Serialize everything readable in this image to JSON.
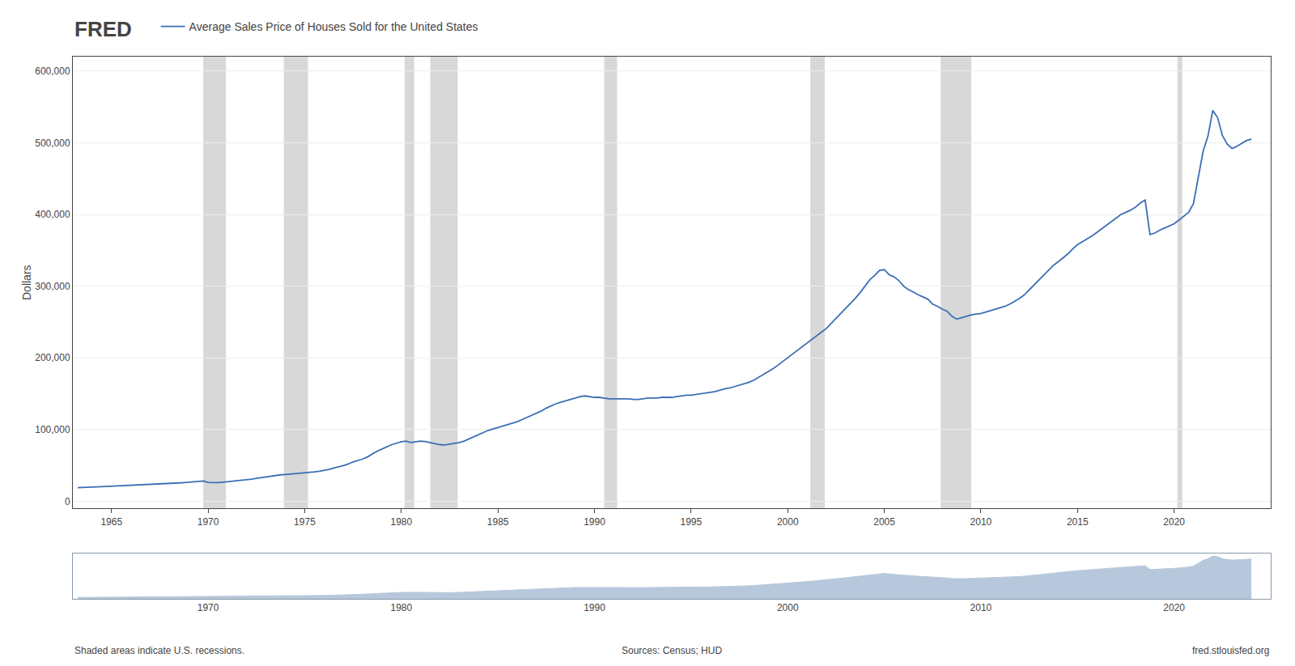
{
  "chart_data": [
    {
      "type": "line",
      "ylabel": "Dollars",
      "annotations": [
        "FRED",
        "Shaded areas indicate U.S. recessions.",
        "Sources: Census; HUD",
        "fred.stlouisfed.org"
      ],
      "legend": "top left",
      "grid": true,
      "xlim": [
        1963.0,
        2025.0
      ],
      "ylim": [
        -10000,
        620000
      ],
      "xticks": [
        1965,
        1970,
        1975,
        1980,
        1985,
        1990,
        1995,
        2000,
        2005,
        2010,
        2015,
        2020
      ],
      "yticks": [
        0,
        {
          "value": 100000,
          "label": "100,000"
        },
        {
          "value": 200000,
          "label": "200,000"
        },
        {
          "value": 300000,
          "label": "300,000"
        },
        {
          "value": 400000,
          "label": "400,000"
        },
        {
          "value": 500000,
          "label": "500,000"
        },
        {
          "value": 600000,
          "label": "600,000"
        }
      ],
      "recessions": {
        "color": "#d8d8d8",
        "ranges": [
          [
            1969.75,
            1970.92
          ],
          [
            1973.92,
            1975.17
          ],
          [
            1980.17,
            1980.67
          ],
          [
            1981.5,
            1982.92
          ],
          [
            1990.5,
            1991.17
          ],
          [
            2001.17,
            2001.92
          ],
          [
            2007.92,
            2009.5
          ],
          [
            2020.17,
            2020.42
          ]
        ]
      },
      "x": [
        1963.25,
        1963.5,
        1963.75,
        1964.0,
        1964.25,
        1964.5,
        1964.75,
        1965.0,
        1965.25,
        1965.5,
        1965.75,
        1966.0,
        1966.25,
        1966.5,
        1966.75,
        1967.0,
        1967.25,
        1967.5,
        1967.75,
        1968.0,
        1968.25,
        1968.5,
        1968.75,
        1969.0,
        1969.25,
        1969.5,
        1969.75,
        1970.0,
        1970.25,
        1970.5,
        1970.75,
        1971.0,
        1971.25,
        1971.5,
        1971.75,
        1972.0,
        1972.25,
        1972.5,
        1972.75,
        1973.0,
        1973.25,
        1973.5,
        1973.75,
        1974.0,
        1974.25,
        1974.5,
        1974.75,
        1975.0,
        1975.25,
        1975.5,
        1975.75,
        1976.0,
        1976.25,
        1976.5,
        1976.75,
        1977.0,
        1977.25,
        1977.5,
        1977.75,
        1978.0,
        1978.25,
        1978.5,
        1978.75,
        1979.0,
        1979.25,
        1979.5,
        1979.75,
        1980.0,
        1980.25,
        1980.5,
        1980.75,
        1981.0,
        1981.25,
        1981.5,
        1981.75,
        1982.0,
        1982.25,
        1982.5,
        1982.75,
        1983.0,
        1983.25,
        1983.5,
        1983.75,
        1984.0,
        1984.25,
        1984.5,
        1984.75,
        1985.0,
        1985.25,
        1985.5,
        1985.75,
        1986.0,
        1986.25,
        1986.5,
        1986.75,
        1987.0,
        1987.25,
        1987.5,
        1987.75,
        1988.0,
        1988.25,
        1988.5,
        1988.75,
        1989.0,
        1989.25,
        1989.5,
        1989.75,
        1990.0,
        1990.25,
        1990.5,
        1990.75,
        1991.0,
        1991.25,
        1991.5,
        1991.75,
        1992.0,
        1992.25,
        1992.5,
        1992.75,
        1993.0,
        1993.25,
        1993.5,
        1993.75,
        1994.0,
        1994.25,
        1994.5,
        1994.75,
        1995.0,
        1995.25,
        1995.5,
        1995.75,
        1996.0,
        1996.25,
        1996.5,
        1996.75,
        1997.0,
        1997.25,
        1997.5,
        1997.75,
        1998.0,
        1998.25,
        1998.5,
        1998.75,
        1999.0,
        1999.25,
        1999.5,
        1999.75,
        2000.0,
        2000.25,
        2000.5,
        2000.75,
        2001.0,
        2001.25,
        2001.5,
        2001.75,
        2002.0,
        2002.25,
        2002.5,
        2002.75,
        2003.0,
        2003.25,
        2003.5,
        2003.75,
        2004.0,
        2004.25,
        2004.5,
        2004.75,
        2005.0,
        2005.25,
        2005.5,
        2005.75,
        2006.0,
        2006.25,
        2006.5,
        2006.75,
        2007.0,
        2007.25,
        2007.5,
        2007.75,
        2008.0,
        2008.25,
        2008.5,
        2008.75,
        2009.0,
        2009.25,
        2009.5,
        2009.75,
        2010.0,
        2010.25,
        2010.5,
        2010.75,
        2011.0,
        2011.25,
        2011.5,
        2011.75,
        2012.0,
        2012.25,
        2012.5,
        2012.75,
        2013.0,
        2013.25,
        2013.5,
        2013.75,
        2014.0,
        2014.25,
        2014.5,
        2014.75,
        2015.0,
        2015.25,
        2015.5,
        2015.75,
        2016.0,
        2016.25,
        2016.5,
        2016.75,
        2017.0,
        2017.25,
        2017.5,
        2017.75,
        2018.0,
        2018.25,
        2018.5,
        2018.75,
        2019.0,
        2019.25,
        2019.5,
        2019.75,
        2020.0,
        2020.25,
        2020.5,
        2020.75,
        2021.0,
        2021.25,
        2021.5,
        2021.75,
        2022.0,
        2022.25,
        2022.5,
        2022.75,
        2023.0,
        2023.25,
        2023.5,
        2023.75,
        2024.0
      ],
      "series": [
        {
          "name": "Average Sales Price of Houses Sold for the United States",
          "color": "#3a6fb5",
          "values": [
            19000,
            19500,
            19800,
            20000,
            20300,
            20500,
            20800,
            21000,
            21200,
            21500,
            21700,
            22000,
            22300,
            22600,
            22900,
            23300,
            23700,
            24000,
            24400,
            24800,
            25200,
            25700,
            26200,
            26700,
            27200,
            27800,
            28400,
            26500,
            26000,
            26200,
            26800,
            27500,
            28000,
            28500,
            29000,
            30000,
            31000,
            32000,
            33000,
            34000,
            35500,
            36500,
            37000,
            37500,
            38000,
            38500,
            39000,
            39800,
            40200,
            41000,
            42000,
            43000,
            44500,
            46500,
            48000,
            49800,
            52000,
            55000,
            57000,
            59000,
            62000,
            66000,
            70000,
            73000,
            76000,
            79000,
            81000,
            83000,
            84000,
            82000,
            83000,
            84000,
            83500,
            82000,
            80000,
            79000,
            78500,
            79500,
            81000,
            82000,
            84000,
            87000,
            90000,
            93000,
            96000,
            99000,
            101000,
            103000,
            105000,
            107000,
            109000,
            111000,
            114000,
            117000,
            120000,
            123000,
            126000,
            130000,
            133000,
            136000,
            138000,
            140000,
            142000,
            144000,
            146000,
            147000,
            146000,
            145000,
            145000,
            144000,
            143000,
            143000,
            143000,
            143000,
            143000,
            142000,
            142000,
            143000,
            144000,
            144000,
            144000,
            145000,
            145000,
            145000,
            146000,
            147000,
            148000,
            148000,
            149000,
            150000,
            151000,
            152000,
            153000,
            155000,
            157000,
            158000,
            160000,
            162000,
            164000,
            166000,
            169000,
            173000,
            177000,
            181000,
            185000,
            190000,
            195000,
            200000,
            206000,
            210000,
            215000,
            220000,
            225000,
            230000,
            235000,
            241000,
            248000,
            255000,
            261000,
            268000,
            275000,
            283000,
            291000,
            300000,
            309000,
            315000,
            322000,
            323000,
            316000,
            313000,
            308000,
            300000,
            295000,
            292000,
            288000,
            285000,
            282000,
            275000,
            272000,
            268000,
            265000,
            258000,
            254000,
            256000,
            258000,
            260000,
            261000,
            262000,
            264000,
            266000,
            268000,
            270000,
            272000,
            275000,
            279000,
            283000,
            288000,
            295000,
            302000,
            309000,
            316000,
            322000,
            329000,
            334000,
            339000,
            345000,
            352000,
            358000,
            362000,
            366000,
            370000,
            375000,
            380000,
            385000,
            390000,
            395000,
            400000,
            403000,
            406000,
            410000,
            416000,
            420000,
            372000,
            374000,
            378000,
            381000,
            384000,
            387000,
            392000,
            397000,
            403000,
            415000,
            452000,
            488000,
            509000,
            545000,
            535000,
            510000,
            498000,
            492000,
            495000,
            499000,
            503000,
            505000
          ]
        }
      ]
    },
    {
      "type": "area",
      "grid": false,
      "tick_labels": "x",
      "color": "#b8c8dc",
      "xlim": [
        1963.0,
        2025.0
      ],
      "ylim": [
        0,
        572250
      ],
      "xticks": [
        1970,
        1980,
        1990,
        2000,
        2010,
        2020
      ],
      "x": [
        1963.25,
        1963.5,
        1963.75,
        1964.0,
        1964.25,
        1964.5,
        1964.75,
        1965.0,
        1965.25,
        1965.5,
        1965.75,
        1966.0,
        1966.25,
        1966.5,
        1966.75,
        1967.0,
        1967.25,
        1967.5,
        1967.75,
        1968.0,
        1968.25,
        1968.5,
        1968.75,
        1969.0,
        1969.25,
        1969.5,
        1969.75,
        1970.0,
        1970.25,
        1970.5,
        1970.75,
        1971.0,
        1971.25,
        1971.5,
        1971.75,
        1972.0,
        1972.25,
        1972.5,
        1972.75,
        1973.0,
        1973.25,
        1973.5,
        1973.75,
        1974.0,
        1974.25,
        1974.5,
        1974.75,
        1975.0,
        1975.25,
        1975.5,
        1975.75,
        1976.0,
        1976.25,
        1976.5,
        1976.75,
        1977.0,
        1977.25,
        1977.5,
        1977.75,
        1978.0,
        1978.25,
        1978.5,
        1978.75,
        1979.0,
        1979.25,
        1979.5,
        1979.75,
        1980.0,
        1980.25,
        1980.5,
        1980.75,
        1981.0,
        1981.25,
        1981.5,
        1981.75,
        1982.0,
        1982.25,
        1982.5,
        1982.75,
        1983.0,
        1983.25,
        1983.5,
        1983.75,
        1984.0,
        1984.25,
        1984.5,
        1984.75,
        1985.0,
        1985.25,
        1985.5,
        1985.75,
        1986.0,
        1986.25,
        1986.5,
        1986.75,
        1987.0,
        1987.25,
        1987.5,
        1987.75,
        1988.0,
        1988.25,
        1988.5,
        1988.75,
        1989.0,
        1989.25,
        1989.5,
        1989.75,
        1990.0,
        1990.25,
        1990.5,
        1990.75,
        1991.0,
        1991.25,
        1991.5,
        1991.75,
        1992.0,
        1992.25,
        1992.5,
        1992.75,
        1993.0,
        1993.25,
        1993.5,
        1993.75,
        1994.0,
        1994.25,
        1994.5,
        1994.75,
        1995.0,
        1995.25,
        1995.5,
        1995.75,
        1996.0,
        1996.25,
        1996.5,
        1996.75,
        1997.0,
        1997.25,
        1997.5,
        1997.75,
        1998.0,
        1998.25,
        1998.5,
        1998.75,
        1999.0,
        1999.25,
        1999.5,
        1999.75,
        2000.0,
        2000.25,
        2000.5,
        2000.75,
        2001.0,
        2001.25,
        2001.5,
        2001.75,
        2002.0,
        2002.25,
        2002.5,
        2002.75,
        2003.0,
        2003.25,
        2003.5,
        2003.75,
        2004.0,
        2004.25,
        2004.5,
        2004.75,
        2005.0,
        2005.25,
        2005.5,
        2005.75,
        2006.0,
        2006.25,
        2006.5,
        2006.75,
        2007.0,
        2007.25,
        2007.5,
        2007.75,
        2008.0,
        2008.25,
        2008.5,
        2008.75,
        2009.0,
        2009.25,
        2009.5,
        2009.75,
        2010.0,
        2010.25,
        2010.5,
        2010.75,
        2011.0,
        2011.25,
        2011.5,
        2011.75,
        2012.0,
        2012.25,
        2012.5,
        2012.75,
        2013.0,
        2013.25,
        2013.5,
        2013.75,
        2014.0,
        2014.25,
        2014.5,
        2014.75,
        2015.0,
        2015.25,
        2015.5,
        2015.75,
        2016.0,
        2016.25,
        2016.5,
        2016.75,
        2017.0,
        2017.25,
        2017.5,
        2017.75,
        2018.0,
        2018.25,
        2018.5,
        2018.75,
        2019.0,
        2019.25,
        2019.5,
        2019.75,
        2020.0,
        2020.25,
        2020.5,
        2020.75,
        2021.0,
        2021.25,
        2021.5,
        2021.75,
        2022.0,
        2022.25,
        2022.5,
        2022.75,
        2023.0,
        2023.25,
        2023.5,
        2023.75,
        2024.0
      ],
      "values": [
        19000,
        19500,
        19800,
        20000,
        20300,
        20500,
        20800,
        21000,
        21200,
        21500,
        21700,
        22000,
        22300,
        22600,
        22900,
        23300,
        23700,
        24000,
        24400,
        24800,
        25200,
        25700,
        26200,
        26700,
        27200,
        27800,
        28400,
        26500,
        26000,
        26200,
        26800,
        27500,
        28000,
        28500,
        29000,
        30000,
        31000,
        32000,
        33000,
        34000,
        35500,
        36500,
        37000,
        37500,
        38000,
        38500,
        39000,
        39800,
        40200,
        41000,
        42000,
        43000,
        44500,
        46500,
        48000,
        49800,
        52000,
        55000,
        57000,
        59000,
        62000,
        66000,
        70000,
        73000,
        76000,
        79000,
        81000,
        83000,
        84000,
        82000,
        83000,
        84000,
        83500,
        82000,
        80000,
        79000,
        78500,
        79500,
        81000,
        82000,
        84000,
        87000,
        90000,
        93000,
        96000,
        99000,
        101000,
        103000,
        105000,
        107000,
        109000,
        111000,
        114000,
        117000,
        120000,
        123000,
        126000,
        130000,
        133000,
        136000,
        138000,
        140000,
        142000,
        144000,
        146000,
        147000,
        146000,
        145000,
        145000,
        144000,
        143000,
        143000,
        143000,
        143000,
        143000,
        142000,
        142000,
        143000,
        144000,
        144000,
        144000,
        145000,
        145000,
        145000,
        146000,
        147000,
        148000,
        148000,
        149000,
        150000,
        151000,
        152000,
        153000,
        155000,
        157000,
        158000,
        160000,
        162000,
        164000,
        166000,
        169000,
        173000,
        177000,
        181000,
        185000,
        190000,
        195000,
        200000,
        206000,
        210000,
        215000,
        220000,
        225000,
        230000,
        235000,
        241000,
        248000,
        255000,
        261000,
        268000,
        275000,
        283000,
        291000,
        300000,
        309000,
        315000,
        322000,
        323000,
        316000,
        313000,
        308000,
        300000,
        295000,
        292000,
        288000,
        285000,
        282000,
        275000,
        272000,
        268000,
        265000,
        258000,
        254000,
        256000,
        258000,
        260000,
        261000,
        262000,
        264000,
        266000,
        268000,
        270000,
        272000,
        275000,
        279000,
        283000,
        288000,
        295000,
        302000,
        309000,
        316000,
        322000,
        329000,
        334000,
        339000,
        345000,
        352000,
        358000,
        362000,
        366000,
        370000,
        375000,
        380000,
        385000,
        390000,
        395000,
        400000,
        403000,
        406000,
        410000,
        416000,
        420000,
        372000,
        374000,
        378000,
        381000,
        384000,
        387000,
        392000,
        397000,
        403000,
        415000,
        452000,
        488000,
        509000,
        545000,
        535000,
        510000,
        498000,
        492000,
        495000,
        499000,
        503000,
        505000
      ]
    }
  ]
}
